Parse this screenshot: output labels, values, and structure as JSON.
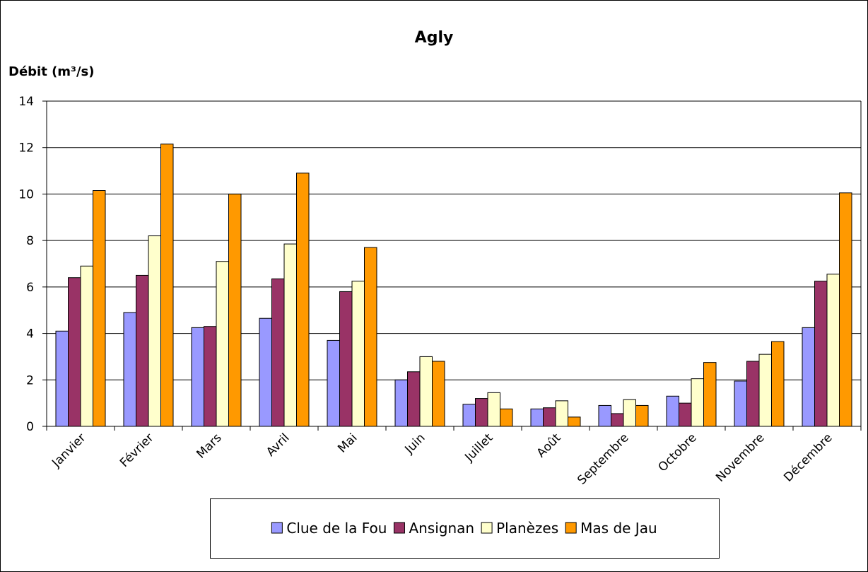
{
  "chart_data": {
    "type": "bar",
    "title": "Agly",
    "y_label": "Débit (m³/s)",
    "categories": [
      "Janvier",
      "Février",
      "Mars",
      "Avril",
      "Mai",
      "Juin",
      "Juillet",
      "Août",
      "Septembre",
      "Octobre",
      "Novembre",
      "Décembre"
    ],
    "series": [
      {
        "name": "Clue de la Fou",
        "color": "#9999ff",
        "values": [
          4.1,
          4.9,
          4.25,
          4.65,
          3.7,
          2.0,
          0.95,
          0.75,
          0.9,
          1.3,
          1.95,
          4.25
        ]
      },
      {
        "name": "Ansignan",
        "color": "#993366",
        "values": [
          6.4,
          6.5,
          4.3,
          6.35,
          5.8,
          2.35,
          1.2,
          0.8,
          0.55,
          1.0,
          2.8,
          6.25
        ]
      },
      {
        "name": "Planèzes",
        "color": "#ffffcc",
        "values": [
          6.9,
          8.2,
          7.1,
          7.85,
          6.25,
          3.0,
          1.45,
          1.1,
          1.15,
          2.05,
          3.1,
          6.55
        ]
      },
      {
        "name": "Mas de Jau",
        "color": "#ff9900",
        "values": [
          10.15,
          12.15,
          10.0,
          10.9,
          7.7,
          2.8,
          0.75,
          0.4,
          0.9,
          2.75,
          3.65,
          10.05
        ]
      }
    ],
    "ylim": [
      0,
      14
    ],
    "yticks": [
      0,
      2,
      4,
      6,
      8,
      10,
      12,
      14
    ],
    "grid": true,
    "legend": "bottom"
  }
}
